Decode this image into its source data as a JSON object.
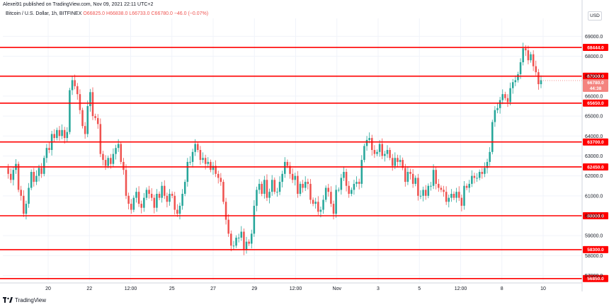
{
  "header": {
    "publisher_text": "Alexei91 published on TradingView.com, Nov 09, 2021 22:11 UTC+2"
  },
  "symbol": {
    "name": "Bitcoin / U.S. Dollar, 1h, BITFINEX",
    "open": "O66825.0",
    "high": "H66838.0",
    "low": "L66733.0",
    "close": "C66780.0",
    "change": "−46.0 (−0.07%)"
  },
  "currency_badge": "USD",
  "footer": {
    "brand": "TradingView"
  },
  "chart_data": {
    "type": "candlestick",
    "y_axis_ticks": [
      57000,
      58000,
      59000,
      60000,
      61000,
      62000,
      63000,
      64000,
      65000,
      66000,
      67000,
      68000,
      69000
    ],
    "y_axis_tick_labels": [
      "57000.0",
      "58000.0",
      "59000.0",
      "60000.0",
      "61000.0",
      "62000.0",
      "63000.0",
      "64000.0",
      "65000.0",
      "66000.0",
      "67000.0",
      "68000.0",
      "69000.0"
    ],
    "ylim": [
      56700,
      69900
    ],
    "x_axis_tick_labels": [
      "20",
      "22",
      "12:00",
      "25",
      "27",
      "29",
      "12:00",
      "Nov",
      "3",
      "5",
      "12:00",
      "8",
      "10"
    ],
    "levels": [
      {
        "value": 68444,
        "label": "68444.0"
      },
      {
        "value": 67000,
        "label": "67000.0"
      },
      {
        "value": 65650,
        "label": "65650.0"
      },
      {
        "value": 63700,
        "label": "63700.0"
      },
      {
        "value": 62450,
        "label": "62450.0"
      },
      {
        "value": 60000,
        "label": "60000.0"
      },
      {
        "value": 58300,
        "label": "58300.0"
      },
      {
        "value": 56850,
        "label": "56850.0"
      }
    ],
    "last_price": {
      "value": 66780,
      "label": "66780.0",
      "countdown": "44:38"
    },
    "price_path": [
      62400,
      62100,
      61800,
      62300,
      62600,
      61300,
      61000,
      60100,
      60600,
      61400,
      62200,
      61700,
      62000,
      62400,
      62100,
      62900,
      63400,
      63300,
      64100,
      63900,
      64300,
      64000,
      64300,
      63900,
      64200,
      66300,
      66800,
      66500,
      66100,
      65300,
      64500,
      64100,
      65500,
      66200,
      65000,
      64900,
      64600,
      63100,
      62800,
      62500,
      62900,
      62600,
      63100,
      63400,
      63600,
      62700,
      62300,
      61000,
      60600,
      60300,
      60900,
      61200,
      60600,
      60400,
      60900,
      61300,
      61100,
      60900,
      60400,
      61100,
      60900,
      61500,
      61000,
      60700,
      61100,
      61000,
      60300,
      60100,
      60500,
      61100,
      61700,
      62700,
      62700,
      63200,
      63600,
      63300,
      62800,
      62900,
      62600,
      62700,
      62300,
      62500,
      62100,
      61900,
      61700,
      60700,
      59800,
      59100,
      58500,
      58500,
      58900,
      58900,
      59200,
      58300,
      58700,
      58600,
      59100,
      60500,
      61300,
      61600,
      61100,
      61800,
      60900,
      61200,
      61800,
      61200,
      61200,
      61700,
      62100,
      62700,
      62500,
      62100,
      61800,
      62000,
      61100,
      61600,
      61400,
      61700,
      61600,
      60800,
      60600,
      60700,
      60200,
      60300,
      60800,
      61400,
      61200,
      60600,
      60100,
      61300,
      61300,
      61900,
      62200,
      61500,
      61100,
      61300,
      61600,
      61700,
      61600,
      62800,
      63500,
      63800,
      63900,
      63300,
      63100,
      63200,
      63600,
      63000,
      63100,
      63300,
      62900,
      62500,
      62900,
      62700,
      62800,
      62400,
      61700,
      62200,
      62100,
      61600,
      61900,
      61000,
      61000,
      61300,
      61000,
      61500,
      61500,
      62300,
      61600,
      61400,
      61300,
      61200,
      60700,
      60900,
      61100,
      60900,
      61200,
      60900,
      60500,
      61500,
      61400,
      61600,
      62000,
      61900,
      61900,
      62200,
      62100,
      62400,
      62700,
      63200,
      64700,
      65300,
      65400,
      65800,
      66100,
      65900,
      65700,
      66400,
      66700,
      66800,
      67100,
      67700,
      68400,
      68300,
      67800,
      68100,
      67500,
      67200,
      66600,
      66800
    ]
  }
}
